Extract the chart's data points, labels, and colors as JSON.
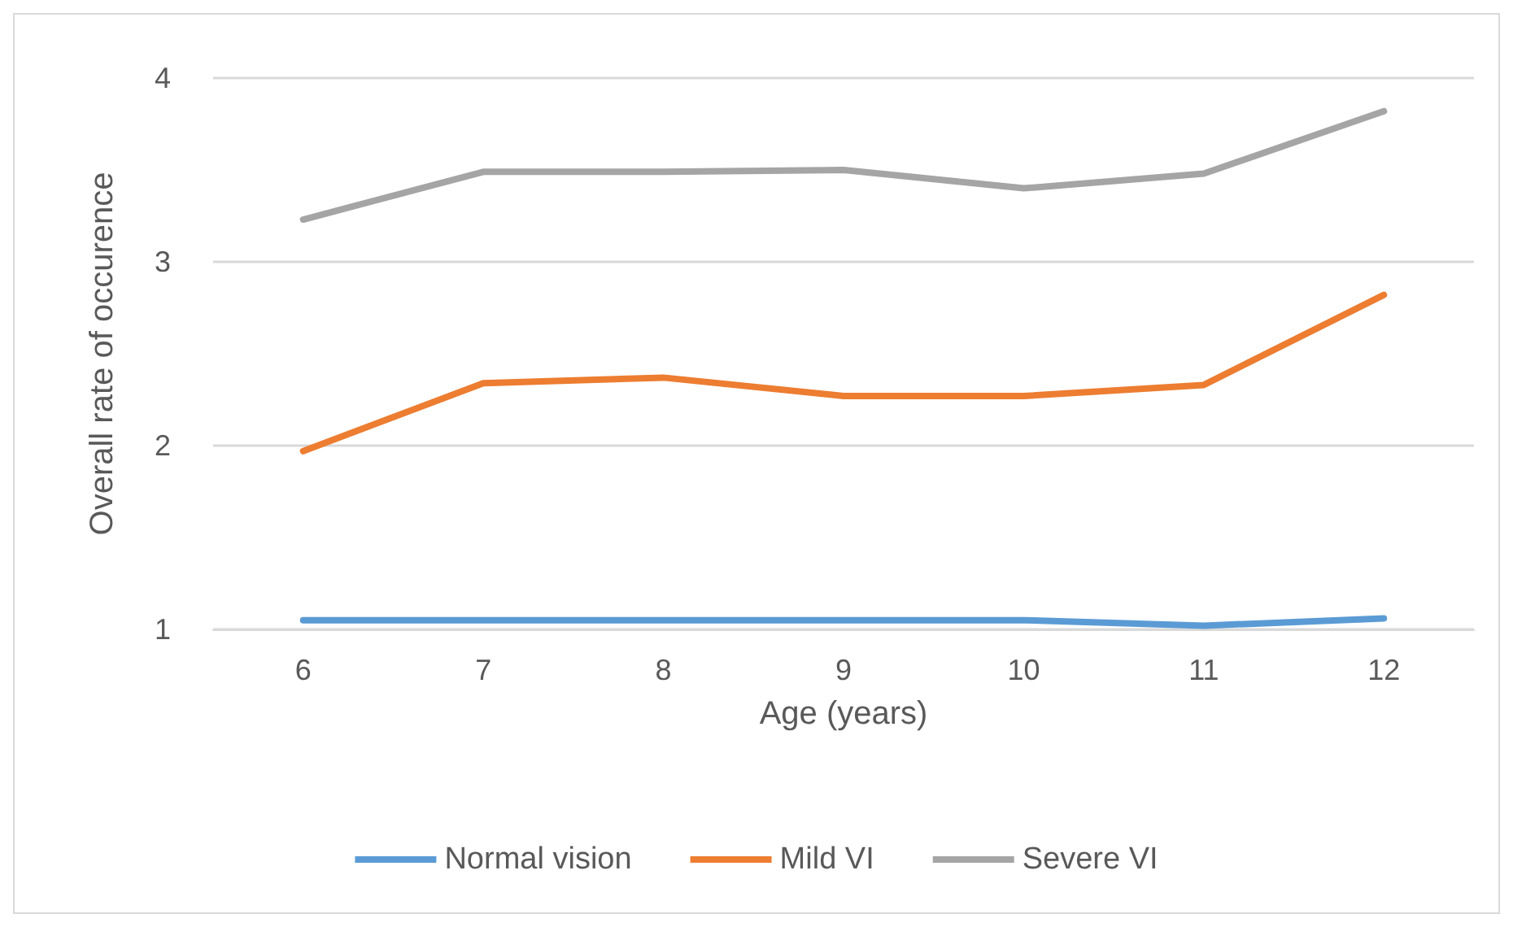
{
  "chart_data": {
    "type": "line",
    "xlabel": "Age (years)",
    "ylabel": "Overall rate of occurence",
    "categories": [
      "6",
      "7",
      "8",
      "9",
      "10",
      "11",
      "12"
    ],
    "series": [
      {
        "name": "Normal vision",
        "color": "#5b9bd5",
        "values": [
          1.05,
          1.05,
          1.05,
          1.05,
          1.05,
          1.02,
          1.06
        ]
      },
      {
        "name": "Mild VI",
        "color": "#ed7d31",
        "values": [
          1.97,
          2.34,
          2.37,
          2.27,
          2.27,
          2.33,
          2.82
        ]
      },
      {
        "name": "Severe VI",
        "color": "#a5a5a5",
        "values": [
          3.23,
          3.49,
          3.49,
          3.5,
          3.4,
          3.48,
          3.82
        ]
      }
    ],
    "ylim": [
      1,
      4
    ],
    "yticks": [
      1,
      2,
      3,
      4
    ],
    "grid": "y",
    "legend": "bottom",
    "marker": "none",
    "line_style": "solid"
  }
}
